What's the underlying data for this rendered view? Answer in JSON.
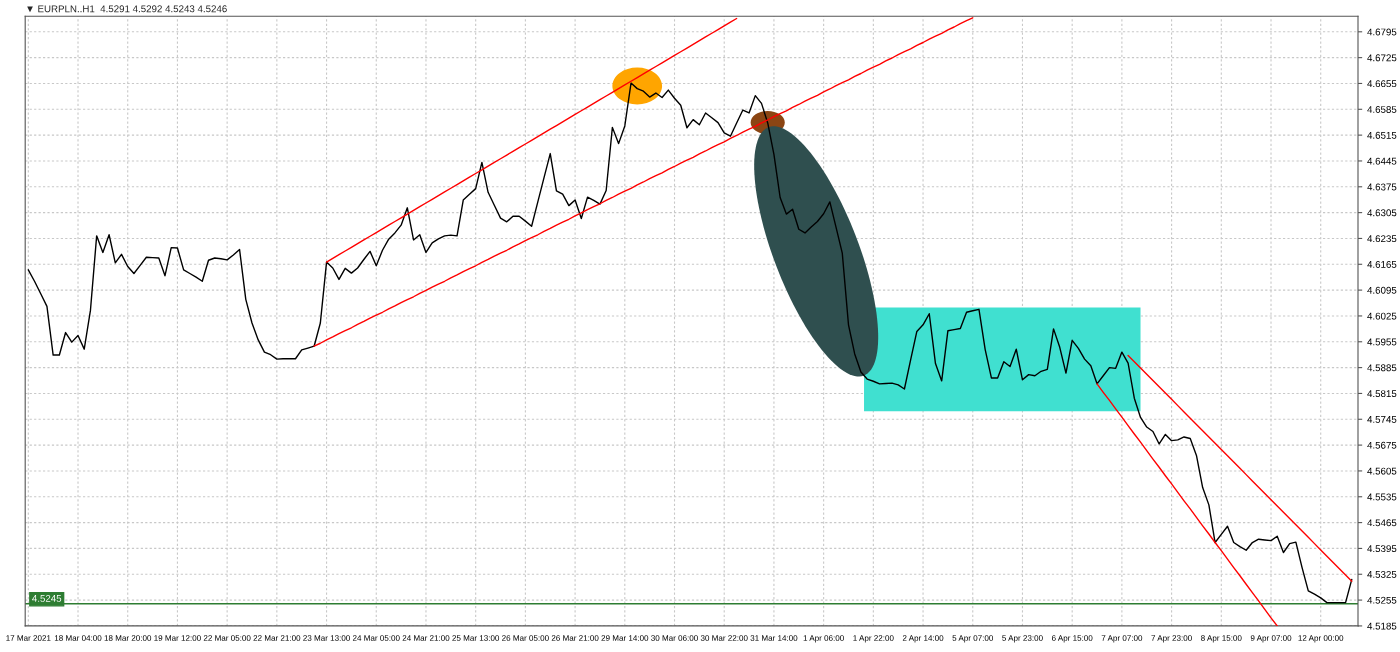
{
  "chart_data": {
    "type": "line",
    "title": "▼ EURPLN..H1  4.5291 4.5292 4.5243 4.5246",
    "categories": [
      "17 Mar 2021",
      null,
      null,
      null,
      null,
      null,
      null,
      null,
      "18 Mar 04:00",
      null,
      null,
      null,
      null,
      null,
      null,
      null,
      "18 Mar 20:00",
      null,
      null,
      null,
      null,
      null,
      null,
      null,
      "19 Mar 12:00",
      null,
      null,
      null,
      null,
      null,
      null,
      null,
      "22 Mar 05:00",
      null,
      null,
      null,
      null,
      null,
      null,
      null,
      "22 Mar 21:00",
      null,
      null,
      null,
      null,
      null,
      null,
      null,
      "23 Mar 13:00",
      null,
      null,
      null,
      null,
      null,
      null,
      null,
      "24 Mar 05:00",
      null,
      null,
      null,
      null,
      null,
      null,
      null,
      "24 Mar 21:00",
      null,
      null,
      null,
      null,
      null,
      null,
      null,
      "25 Mar 13:00",
      null,
      null,
      null,
      null,
      null,
      null,
      null,
      "26 Mar 05:00",
      null,
      null,
      null,
      null,
      null,
      null,
      null,
      "26 Mar 21:00",
      null,
      null,
      null,
      null,
      null,
      null,
      null,
      "29 Mar 14:00",
      null,
      null,
      null,
      null,
      null,
      null,
      null,
      "30 Mar 06:00",
      null,
      null,
      null,
      null,
      null,
      null,
      null,
      "30 Mar 22:00",
      null,
      null,
      null,
      null,
      null,
      null,
      null,
      "31 Mar 14:00",
      null,
      null,
      null,
      null,
      null,
      null,
      null,
      "1 Apr 06:00",
      null,
      null,
      null,
      null,
      null,
      null,
      null,
      "1 Apr 22:00",
      null,
      null,
      null,
      null,
      null,
      null,
      null,
      "2 Apr 14:00",
      null,
      null,
      null,
      null,
      null,
      null,
      null,
      "5 Apr 07:00",
      null,
      null,
      null,
      null,
      null,
      null,
      null,
      "5 Apr 23:00",
      null,
      null,
      null,
      null,
      null,
      null,
      null,
      "6 Apr 15:00",
      null,
      null,
      null,
      null,
      null,
      null,
      null,
      "7 Apr 07:00",
      null,
      null,
      null,
      null,
      null,
      null,
      null,
      "7 Apr 23:00",
      null,
      null,
      null,
      null,
      null,
      null,
      null,
      "8 Apr 15:00",
      null,
      null,
      null,
      null,
      null,
      null,
      null,
      "9 Apr 07:00",
      null,
      null,
      null,
      null,
      null,
      null,
      null,
      "12 Apr 00:00",
      null,
      null,
      null,
      null,
      null
    ],
    "ylim": [
      4.5185,
      4.6837
    ],
    "yticks": [
      4.5185,
      4.5255,
      4.5325,
      4.5395,
      4.5465,
      4.5535,
      4.5605,
      4.5675,
      4.5745,
      4.5815,
      4.5885,
      4.5955,
      4.6025,
      4.6095,
      4.6165,
      4.6235,
      4.6305,
      4.6375,
      4.6445,
      4.6515,
      4.6585,
      4.6655,
      4.6725,
      4.6795
    ],
    "grid": true,
    "ref_lines": [
      {
        "axis": "y",
        "value": 4.5245,
        "label": "4.5245",
        "color": "#2e7d32"
      }
    ],
    "series": [
      {
        "color": "#000000",
        "values": [
          4.615,
          4.6119,
          4.6085,
          4.6051,
          4.5919,
          4.5919,
          4.598,
          4.5954,
          4.5972,
          4.5935,
          4.604,
          4.6242,
          4.6197,
          4.6245,
          4.6169,
          4.6192,
          4.6159,
          4.614,
          4.6162,
          4.6184,
          4.6183,
          4.6182,
          4.6134,
          4.621,
          4.6209,
          4.615,
          4.614,
          4.613,
          4.6119,
          4.6176,
          4.6182,
          4.618,
          4.6177,
          4.619,
          4.6205,
          4.607,
          4.6006,
          4.596,
          4.5927,
          4.592,
          4.5908,
          4.5909,
          4.5909,
          4.5909,
          4.5933,
          4.5938,
          4.5943,
          4.6006,
          4.6171,
          4.6155,
          4.6124,
          4.6154,
          4.6141,
          4.6155,
          4.6178,
          4.62,
          4.6161,
          4.6203,
          4.6233,
          4.625,
          4.6271,
          4.6318,
          4.6231,
          4.6245,
          4.6197,
          4.6223,
          4.6234,
          4.6242,
          4.6244,
          4.6242,
          4.6339,
          4.6355,
          4.637,
          4.6441,
          4.636,
          4.6325,
          4.629,
          4.628,
          4.6295,
          4.6295,
          4.6282,
          4.6268,
          4.6334,
          4.64,
          4.6465,
          4.6364,
          4.6355,
          4.6324,
          4.6339,
          4.6289,
          4.6347,
          4.6338,
          4.6328,
          4.6365,
          4.6536,
          4.6492,
          4.654,
          4.6656,
          4.6641,
          4.6634,
          4.6618,
          4.6629,
          4.6617,
          4.6637,
          4.6615,
          4.6596,
          4.6535,
          4.6557,
          4.6543,
          4.6575,
          4.6562,
          4.6549,
          4.6521,
          4.6512,
          4.6548,
          4.6583,
          4.6575,
          4.6622,
          4.6601,
          4.6548,
          4.6463,
          4.6346,
          4.6301,
          4.6314,
          4.626,
          4.625,
          4.6266,
          4.6281,
          4.6302,
          4.6334,
          4.6265,
          4.6195,
          4.6001,
          4.5922,
          4.5873,
          4.5854,
          4.5848,
          4.5841,
          4.5842,
          4.5843,
          4.5838,
          4.5827,
          4.5906,
          4.5983,
          4.6001,
          4.6031,
          4.5896,
          4.5849,
          4.5985,
          4.5988,
          4.5991,
          4.6035,
          4.6039,
          4.6043,
          4.5934,
          4.5857,
          4.5857,
          4.5901,
          4.5888,
          4.5935,
          4.5852,
          4.5866,
          4.5863,
          4.5875,
          4.588,
          4.599,
          4.594,
          4.587,
          4.5959,
          4.5937,
          4.5908,
          4.589,
          4.5841,
          4.5863,
          4.5885,
          4.5883,
          4.5927,
          4.5897,
          4.5802,
          4.575,
          4.5724,
          4.5712,
          4.5678,
          4.5704,
          4.5687,
          4.5689,
          4.5697,
          4.5693,
          4.5647,
          4.556,
          4.5513,
          4.5411,
          4.5433,
          4.5455,
          4.5411,
          4.54,
          4.539,
          4.5411,
          4.542,
          4.5418,
          4.5416,
          4.5428,
          4.5384,
          4.5408,
          4.5412,
          4.5343,
          4.528,
          4.5271,
          4.5261,
          4.5248,
          4.5248,
          4.5248,
          4.5248,
          4.5311
        ]
      },
      {
        "type": "line",
        "color": "#ff0000",
        "values": [
          null,
          null,
          null,
          null,
          null,
          null,
          null,
          null,
          null,
          null,
          null,
          null,
          null,
          null,
          null,
          null,
          null,
          null,
          null,
          null,
          null,
          null,
          null,
          null,
          null,
          null,
          null,
          null,
          null,
          null,
          null,
          null,
          null,
          null,
          null,
          null,
          null,
          null,
          null,
          null,
          null,
          null,
          null,
          null,
          null,
          null,
          null,
          null,
          4.6171,
          4.6181,
          4.6191,
          4.6201,
          4.6211,
          4.6221,
          4.6231,
          4.6241,
          4.6251,
          4.6261,
          4.6271,
          4.6281,
          4.6291,
          4.6301,
          4.6311,
          4.6321,
          4.6331,
          4.6341,
          4.6351,
          4.6361,
          4.6371,
          4.6381,
          4.6391,
          4.6401,
          4.6411,
          4.6421,
          4.6431,
          4.6441,
          4.6451,
          4.6461,
          4.6471,
          4.6481,
          4.6491,
          4.6501,
          4.6511,
          4.6521,
          4.6531,
          4.6541,
          4.6551,
          4.6561,
          4.6571,
          4.6581,
          4.6591,
          4.6601,
          4.6611,
          4.6621,
          4.6631,
          4.6641,
          4.6651,
          4.6661,
          4.6671,
          4.6681,
          4.6691,
          4.6701,
          4.6711,
          4.6721,
          4.6731,
          4.6741,
          4.6751,
          4.6761,
          4.6771,
          4.6781,
          4.6791,
          4.6801,
          4.6811,
          4.6821,
          4.6831,
          null,
          null,
          null,
          null,
          null,
          null,
          null,
          null,
          null,
          null,
          null,
          null,
          null,
          null,
          null,
          null,
          null,
          null,
          null,
          null,
          null,
          null,
          null,
          null,
          null,
          null,
          null,
          null,
          null,
          null,
          null,
          null,
          null,
          null,
          null,
          null,
          null,
          null,
          null,
          null,
          null,
          null,
          null,
          null,
          null,
          null,
          null,
          null,
          null,
          null,
          null,
          null,
          null,
          null,
          null,
          null,
          null,
          null,
          null,
          null,
          null,
          null,
          null,
          null,
          null,
          null,
          null,
          null,
          null,
          null,
          null,
          null,
          null,
          null,
          null,
          null,
          null,
          null,
          null,
          null,
          null,
          null,
          null,
          null,
          null,
          null,
          null,
          null,
          null,
          null,
          null,
          null,
          null,
          null,
          null,
          null,
          null,
          null,
          null
        ]
      },
      {
        "type": "line",
        "color": "#ff0000",
        "values": [
          null,
          null,
          null,
          null,
          null,
          null,
          null,
          null,
          null,
          null,
          null,
          null,
          null,
          null,
          null,
          null,
          null,
          null,
          null,
          null,
          null,
          null,
          null,
          null,
          null,
          null,
          null,
          null,
          null,
          null,
          null,
          null,
          null,
          null,
          null,
          null,
          null,
          null,
          null,
          null,
          null,
          null,
          null,
          null,
          null,
          null,
          4.5943,
          4.5951,
          4.596,
          4.5968,
          4.5977,
          4.5985,
          4.5993,
          4.6002,
          4.601,
          4.6019,
          4.6027,
          4.6035,
          4.6044,
          4.6052,
          4.6061,
          4.6069,
          4.6077,
          4.6086,
          4.6094,
          4.6103,
          4.6111,
          4.6119,
          4.6128,
          4.6136,
          4.6145,
          4.6153,
          4.6161,
          4.617,
          4.6178,
          4.6187,
          4.6195,
          4.6203,
          4.6212,
          4.622,
          4.6229,
          4.6237,
          4.6245,
          4.6254,
          4.6262,
          4.6271,
          4.6279,
          4.6287,
          4.6296,
          4.6304,
          4.6313,
          4.6321,
          4.6329,
          4.6338,
          4.6346,
          4.6355,
          4.6363,
          4.6371,
          4.638,
          4.6388,
          4.6397,
          4.6405,
          4.6413,
          4.6422,
          4.643,
          4.6439,
          4.6447,
          4.6455,
          4.6464,
          4.6472,
          4.6481,
          4.6489,
          4.6497,
          4.6506,
          4.6514,
          4.6523,
          4.6531,
          4.6539,
          4.6548,
          4.6556,
          4.6565,
          4.6573,
          4.6581,
          4.659,
          4.6598,
          4.6607,
          4.6615,
          4.6623,
          4.6632,
          4.664,
          4.6649,
          4.6657,
          4.6665,
          4.6674,
          4.6682,
          4.6691,
          4.6699,
          4.6707,
          4.6716,
          4.6724,
          4.6733,
          4.6741,
          4.6749,
          4.6758,
          4.6766,
          4.6775,
          4.6783,
          4.6791,
          4.68,
          4.6808,
          4.6817,
          4.6825,
          4.6833,
          null,
          null,
          null,
          null,
          null,
          null,
          null,
          null,
          null,
          null,
          null,
          null,
          null,
          null,
          null,
          null,
          null,
          null,
          null,
          null,
          null,
          null,
          null,
          null,
          null,
          null,
          null,
          null,
          null,
          null,
          null,
          null,
          null,
          null,
          null,
          null,
          null,
          null,
          null,
          null,
          null,
          null,
          null,
          null,
          null,
          null,
          null,
          null,
          null,
          null,
          null,
          null,
          null,
          null,
          null,
          null,
          null,
          null,
          null,
          null,
          null
        ]
      },
      {
        "type": "line",
        "color": "#ff0000",
        "values": [
          null,
          null,
          null,
          null,
          null,
          null,
          null,
          null,
          null,
          null,
          null,
          null,
          null,
          null,
          null,
          null,
          null,
          null,
          null,
          null,
          null,
          null,
          null,
          null,
          null,
          null,
          null,
          null,
          null,
          null,
          null,
          null,
          null,
          null,
          null,
          null,
          null,
          null,
          null,
          null,
          null,
          null,
          null,
          null,
          null,
          null,
          null,
          null,
          null,
          null,
          null,
          null,
          null,
          null,
          null,
          null,
          null,
          null,
          null,
          null,
          null,
          null,
          null,
          null,
          null,
          null,
          null,
          null,
          null,
          null,
          null,
          null,
          null,
          null,
          null,
          null,
          null,
          null,
          null,
          null,
          null,
          null,
          null,
          null,
          null,
          null,
          null,
          null,
          null,
          null,
          null,
          null,
          null,
          null,
          null,
          null,
          null,
          null,
          null,
          null,
          null,
          null,
          null,
          null,
          null,
          null,
          null,
          null,
          null,
          null,
          null,
          null,
          null,
          null,
          null,
          null,
          null,
          null,
          null,
          null,
          null,
          null,
          null,
          null,
          null,
          null,
          null,
          null,
          null,
          null,
          null,
          null,
          null,
          null,
          null,
          null,
          null,
          null,
          null,
          null,
          null,
          null,
          null,
          null,
          null,
          null,
          null,
          null,
          null,
          null,
          null,
          null,
          null,
          null,
          null,
          null,
          null,
          null,
          null,
          null,
          null,
          null,
          null,
          null,
          null,
          null,
          null,
          null,
          null,
          null,
          null,
          null,
          null,
          null,
          null,
          null,
          null,
          4.5918,
          4.5901,
          4.5884,
          4.5867,
          4.585,
          4.5833,
          4.5816,
          4.5799,
          4.5782,
          4.5765,
          4.5748,
          4.5731,
          4.5714,
          4.5697,
          4.568,
          4.5663,
          4.5646,
          4.5629,
          4.5612,
          4.5595,
          4.5578,
          4.5561,
          4.5544,
          4.5527,
          4.551,
          4.5493,
          4.5476,
          4.5459,
          4.5442,
          4.5425,
          4.5408,
          4.5391,
          4.5374,
          4.5357,
          4.534,
          4.5323,
          4.5306
        ]
      },
      {
        "type": "line",
        "color": "#ff0000",
        "values": [
          null,
          null,
          null,
          null,
          null,
          null,
          null,
          null,
          null,
          null,
          null,
          null,
          null,
          null,
          null,
          null,
          null,
          null,
          null,
          null,
          null,
          null,
          null,
          null,
          null,
          null,
          null,
          null,
          null,
          null,
          null,
          null,
          null,
          null,
          null,
          null,
          null,
          null,
          null,
          null,
          null,
          null,
          null,
          null,
          null,
          null,
          null,
          null,
          null,
          null,
          null,
          null,
          null,
          null,
          null,
          null,
          null,
          null,
          null,
          null,
          null,
          null,
          null,
          null,
          null,
          null,
          null,
          null,
          null,
          null,
          null,
          null,
          null,
          null,
          null,
          null,
          null,
          null,
          null,
          null,
          null,
          null,
          null,
          null,
          null,
          null,
          null,
          null,
          null,
          null,
          null,
          null,
          null,
          null,
          null,
          null,
          null,
          null,
          null,
          null,
          null,
          null,
          null,
          null,
          null,
          null,
          null,
          null,
          null,
          null,
          null,
          null,
          null,
          null,
          null,
          null,
          null,
          null,
          null,
          null,
          null,
          null,
          null,
          null,
          null,
          null,
          null,
          null,
          null,
          null,
          null,
          null,
          null,
          null,
          null,
          null,
          null,
          null,
          null,
          null,
          null,
          null,
          null,
          null,
          null,
          null,
          null,
          null,
          null,
          null,
          null,
          null,
          null,
          null,
          null,
          null,
          null,
          null,
          null,
          null,
          null,
          null,
          null,
          null,
          null,
          null,
          null,
          null,
          null,
          null,
          null,
          null,
          4.5841,
          4.5818,
          4.5796,
          4.5773,
          4.5751,
          4.5728,
          4.5705,
          4.5683,
          4.566,
          4.5637,
          4.5615,
          4.5592,
          4.557,
          4.5547,
          4.5524,
          4.5502,
          4.5479,
          4.5456,
          4.5434,
          4.5411,
          4.5389,
          4.5366,
          4.5343,
          4.5321,
          4.5298,
          4.5275,
          4.5253,
          4.523,
          4.5207,
          4.5185,
          null,
          null,
          null,
          null,
          null,
          null,
          null,
          null,
          null,
          null,
          null,
          null
        ]
      }
    ]
  }
}
